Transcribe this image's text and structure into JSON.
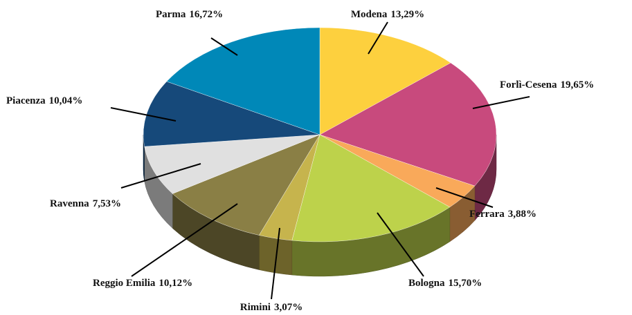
{
  "chart_data": {
    "type": "pie",
    "categories": [
      "Modena",
      "Forlì-Cesena",
      "Ferrara",
      "Bologna",
      "Rimini",
      "Reggio Emilia",
      "Ravenna",
      "Piacenza",
      "Parma"
    ],
    "values": [
      13.29,
      19.65,
      3.88,
      15.7,
      3.07,
      10.12,
      7.53,
      10.04,
      16.72
    ],
    "value_labels": [
      "13,29%",
      "19,65%",
      "3,88%",
      "15,70%",
      "3,07%",
      "10,12%",
      "7,53%",
      "10,04%",
      "16,72%"
    ],
    "colors": [
      "#fdd03e",
      "#c84a7d",
      "#f9a95a",
      "#bdd24b",
      "#c6b44d",
      "#8a7f45",
      "#e0e0e0",
      "#16497a",
      "#0088b8"
    ]
  }
}
